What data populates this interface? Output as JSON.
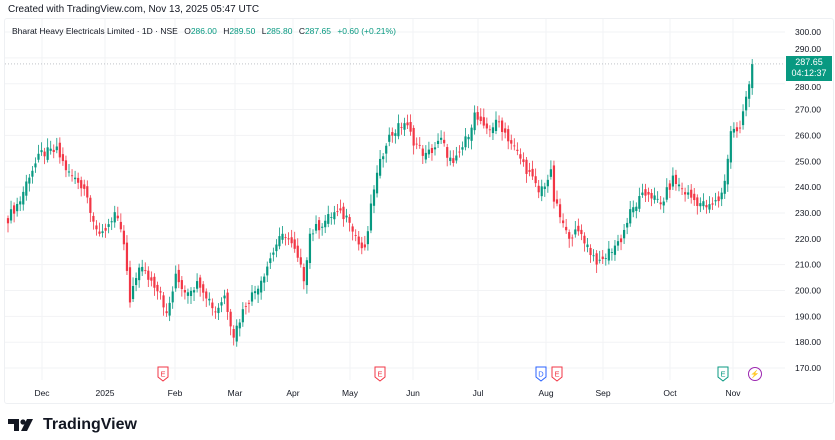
{
  "header": "Created with TradingView.com, Nov 13, 2025 05:47 UTC",
  "legend": {
    "symbol": "Bharat Heavy Electricals Limited · 1D · NSE",
    "o_label": "O",
    "o": "286.00",
    "h_label": "H",
    "h": "289.50",
    "l_label": "L",
    "l": "285.80",
    "c_label": "C",
    "c": "287.65",
    "change": "+0.60 (+0.21%)"
  },
  "price_label": {
    "price": "287.65",
    "countdown": "04:12:37"
  },
  "logo": "TradingView",
  "colors": {
    "up": "#089981",
    "down": "#f23645",
    "grid": "#f2f3f5"
  },
  "chart_data": {
    "type": "candlestick",
    "title": "Bharat Heavy Electricals Limited · 1D · NSE",
    "ylim": [
      165,
      305
    ],
    "y_ticks": [
      "300.00",
      "290.00",
      "280.00",
      "270.00",
      "260.00",
      "250.00",
      "240.00",
      "230.00",
      "220.00",
      "210.00",
      "200.00",
      "190.00",
      "180.00",
      "170.00"
    ],
    "x_ticks": [
      "Dec",
      "2025",
      "Feb",
      "Mar",
      "Apr",
      "May",
      "Jun",
      "Jul",
      "Aug",
      "Sep",
      "Oct",
      "Nov"
    ],
    "close_waypoints_by_day": [
      [
        0,
        228
      ],
      [
        4,
        235
      ],
      [
        7,
        245
      ],
      [
        11,
        253
      ],
      [
        16,
        254
      ],
      [
        20,
        245
      ],
      [
        25,
        240
      ],
      [
        30,
        220
      ],
      [
        35,
        230
      ],
      [
        38,
        218
      ],
      [
        40,
        195
      ],
      [
        43,
        210
      ],
      [
        46,
        205
      ],
      [
        50,
        200
      ],
      [
        52,
        190
      ],
      [
        55,
        205
      ],
      [
        58,
        200
      ],
      [
        63,
        203
      ],
      [
        68,
        192
      ],
      [
        71,
        198
      ],
      [
        74,
        183
      ],
      [
        78,
        195
      ],
      [
        81,
        200
      ],
      [
        84,
        207
      ],
      [
        88,
        218
      ],
      [
        91,
        222
      ],
      [
        94,
        215
      ],
      [
        97,
        205
      ],
      [
        99,
        222
      ],
      [
        102,
        225
      ],
      [
        107,
        230
      ],
      [
        112,
        228
      ],
      [
        115,
        218
      ],
      [
        117,
        215
      ],
      [
        120,
        240
      ],
      [
        124,
        258
      ],
      [
        127,
        262
      ],
      [
        130,
        265
      ],
      [
        133,
        258
      ],
      [
        137,
        252
      ],
      [
        142,
        258
      ],
      [
        146,
        248
      ],
      [
        150,
        258
      ],
      [
        153,
        268
      ],
      [
        156,
        262
      ],
      [
        161,
        265
      ],
      [
        166,
        255
      ],
      [
        171,
        245
      ],
      [
        174,
        238
      ],
      [
        178,
        245
      ],
      [
        179,
        235
      ],
      [
        183,
        222
      ],
      [
        188,
        222
      ],
      [
        191,
        215
      ],
      [
        194,
        210
      ],
      [
        197,
        215
      ],
      [
        201,
        220
      ],
      [
        204,
        230
      ],
      [
        207,
        235
      ],
      [
        210,
        238
      ],
      [
        214,
        233
      ],
      [
        218,
        243
      ],
      [
        222,
        238
      ],
      [
        225,
        235
      ],
      [
        230,
        232
      ],
      [
        233,
        235
      ],
      [
        235,
        242
      ],
      [
        237,
        262
      ],
      [
        240,
        262
      ],
      [
        242,
        275
      ],
      [
        244,
        287.65
      ]
    ],
    "events": [
      {
        "type": "earnings",
        "label": "E",
        "month": "Feb"
      },
      {
        "type": "earnings",
        "label": "E",
        "month": "May"
      },
      {
        "type": "dividend",
        "label": "D",
        "month": "Aug"
      },
      {
        "type": "earnings",
        "label": "E",
        "month": "Aug"
      },
      {
        "type": "earnings",
        "label": "E",
        "month": "Nov"
      },
      {
        "type": "news",
        "label": "⚡",
        "month": "Nov"
      }
    ]
  }
}
